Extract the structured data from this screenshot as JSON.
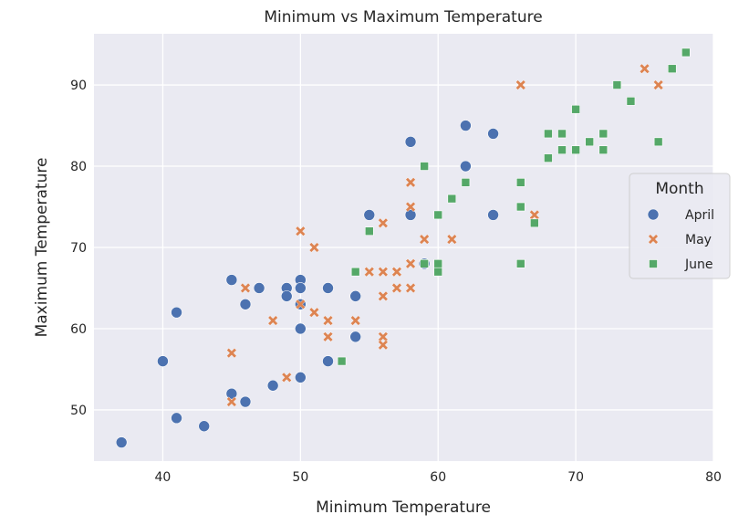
{
  "chart_data": {
    "type": "scatter",
    "title": "Minimum vs Maximum Temperature",
    "xlabel": "Minimum Temperature",
    "ylabel": "Maximum Temperature",
    "xlim": [
      35,
      80
    ],
    "ylim": [
      43.7,
      96.3
    ],
    "xticks": [
      "40",
      "50",
      "60",
      "70",
      "80"
    ],
    "yticks": [
      "50",
      "60",
      "70",
      "80",
      "90"
    ],
    "grid": true,
    "legend": {
      "title": "Month",
      "placement": "right"
    },
    "series": [
      {
        "name": "April",
        "marker": "circle",
        "color": "#4c72b0",
        "points": [
          [
            37,
            46
          ],
          [
            40,
            56
          ],
          [
            41,
            62
          ],
          [
            41,
            49
          ],
          [
            43,
            48
          ],
          [
            45,
            66
          ],
          [
            45,
            52
          ],
          [
            46,
            51
          ],
          [
            46,
            63
          ],
          [
            47,
            65
          ],
          [
            48,
            53
          ],
          [
            49,
            65
          ],
          [
            49,
            64
          ],
          [
            50,
            66
          ],
          [
            50,
            65
          ],
          [
            50,
            63
          ],
          [
            50,
            60
          ],
          [
            50,
            54
          ],
          [
            52,
            65
          ],
          [
            52,
            56
          ],
          [
            54,
            64
          ],
          [
            54,
            59
          ],
          [
            55,
            74
          ],
          [
            58,
            83
          ],
          [
            58,
            74
          ],
          [
            59,
            68
          ],
          [
            62,
            85
          ],
          [
            62,
            80
          ],
          [
            64,
            84
          ],
          [
            64,
            74
          ]
        ]
      },
      {
        "name": "May",
        "marker": "x",
        "color": "#dd8452",
        "points": [
          [
            45,
            57
          ],
          [
            45,
            51
          ],
          [
            46,
            65
          ],
          [
            48,
            61
          ],
          [
            49,
            54
          ],
          [
            50,
            72
          ],
          [
            50,
            63
          ],
          [
            51,
            70
          ],
          [
            51,
            62
          ],
          [
            52,
            61
          ],
          [
            52,
            59
          ],
          [
            54,
            61
          ],
          [
            55,
            67
          ],
          [
            56,
            73
          ],
          [
            56,
            67
          ],
          [
            56,
            64
          ],
          [
            56,
            59
          ],
          [
            56,
            58
          ],
          [
            57,
            67
          ],
          [
            57,
            65
          ],
          [
            58,
            78
          ],
          [
            58,
            75
          ],
          [
            58,
            68
          ],
          [
            58,
            65
          ],
          [
            59,
            71
          ],
          [
            61,
            71
          ],
          [
            66,
            90
          ],
          [
            67,
            74
          ],
          [
            75,
            92
          ],
          [
            76,
            90
          ]
        ]
      },
      {
        "name": "June",
        "marker": "square",
        "color": "#55a868",
        "points": [
          [
            53,
            56
          ],
          [
            54,
            67
          ],
          [
            55,
            72
          ],
          [
            59,
            80
          ],
          [
            59,
            68
          ],
          [
            60,
            74
          ],
          [
            60,
            68
          ],
          [
            60,
            67
          ],
          [
            61,
            76
          ],
          [
            62,
            78
          ],
          [
            66,
            78
          ],
          [
            66,
            75
          ],
          [
            66,
            68
          ],
          [
            67,
            73
          ],
          [
            68,
            84
          ],
          [
            68,
            81
          ],
          [
            69,
            84
          ],
          [
            69,
            82
          ],
          [
            70,
            87
          ],
          [
            70,
            82
          ],
          [
            71,
            83
          ],
          [
            72,
            84
          ],
          [
            72,
            82
          ],
          [
            73,
            90
          ],
          [
            74,
            88
          ],
          [
            76,
            83
          ],
          [
            77,
            92
          ],
          [
            78,
            94
          ]
        ]
      }
    ]
  }
}
